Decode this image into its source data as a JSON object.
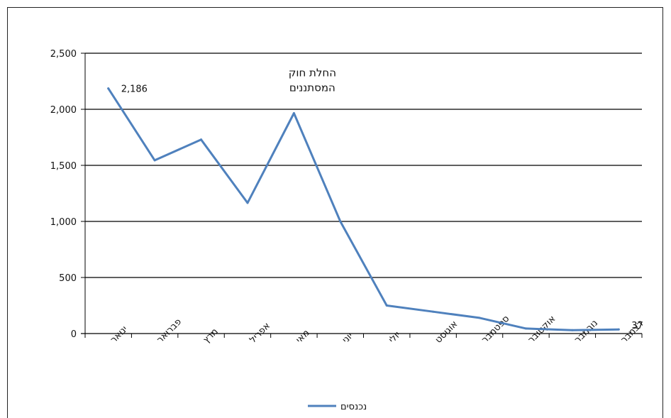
{
  "chart_data": {
    "type": "line",
    "categories": [
      "ינואר",
      "פברואר",
      "מרץ",
      "אפריל",
      "מאי",
      "יוני",
      "יולי",
      "אוגוסט",
      "ספטמבר",
      "אוקטובר",
      "נובמבר",
      "דצמבר"
    ],
    "series": [
      {
        "name": "נכנסים",
        "color": "#4f81bd",
        "values": [
          2186,
          1545,
          1730,
          1165,
          1965,
          1000,
          250,
          195,
          140,
          45,
          30,
          37
        ]
      }
    ],
    "ylim": [
      0,
      2500
    ],
    "yticks": [
      0,
      500,
      1000,
      1500,
      2000,
      2500
    ],
    "ytick_labels": [
      "0",
      "500",
      "1,000",
      "1,500",
      "2,000",
      "2,500"
    ],
    "grid": true,
    "legend": "bottom",
    "data_labels": [
      {
        "index": 0,
        "text": "2,186"
      },
      {
        "index": 11,
        "text": "37"
      }
    ],
    "annotation": {
      "lines": [
        "החלת חוק",
        "המסתננים"
      ],
      "index": 4
    }
  }
}
